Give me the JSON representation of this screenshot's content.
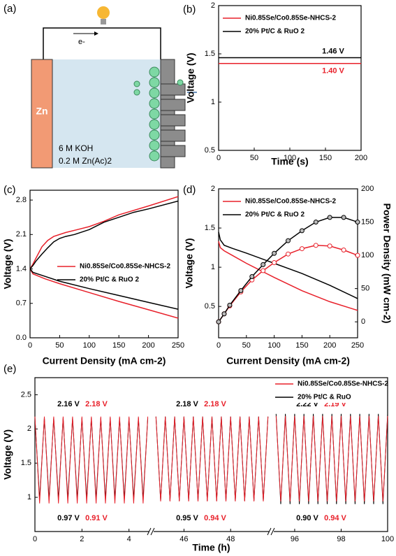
{
  "panel_a": {
    "label": "(a)",
    "electron": "e-",
    "anode": "Zn",
    "electrolyte_1": "6 M KOH",
    "electrolyte_2": "0.2 M Zn(Ac)2"
  },
  "chart_data": [
    {
      "type": "line",
      "panel_label": "(b)",
      "xlabel": "Time (s)",
      "ylabel": "Voltage (V)",
      "xlim": [
        0,
        200
      ],
      "xticks": [
        0,
        50,
        100,
        150,
        200
      ],
      "ylim": [
        0.5,
        2.0
      ],
      "yticks": [
        0.5,
        1.0,
        1.5,
        2.0
      ],
      "series": [
        {
          "name": "Ni0.85Se/Co0.85Se-NHCS-2",
          "color": "#e8202a",
          "x": [
            0,
            200
          ],
          "values": [
            1.4,
            1.4
          ]
        },
        {
          "name": "20% Pt/C & RuO 2",
          "color": "#000000",
          "x": [
            0,
            200
          ],
          "values": [
            1.46,
            1.46
          ]
        }
      ],
      "annotations": [
        "1.40 V",
        "1.46 V"
      ]
    },
    {
      "type": "line",
      "panel_label": "(c)",
      "xlabel": "Current Density (mA cm-2)",
      "ylabel": "Voltage (V)",
      "xlim": [
        0,
        250
      ],
      "xticks": [
        0,
        50,
        100,
        150,
        200,
        250
      ],
      "ylim": [
        0,
        3.0
      ],
      "yticks": [
        {
          "value": 0,
          "label": "0.0"
        },
        0.7,
        1.4,
        2.1,
        2.8
      ],
      "series": [
        {
          "name": "Ni0.85Se/Co0.85Se-NHCS-2",
          "color": "#e8202a",
          "x": [
            0,
            5,
            25,
            50,
            100,
            150,
            200,
            250,
            null,
            0,
            5,
            10,
            20,
            30,
            40,
            60,
            80,
            100,
            125,
            150,
            200,
            250
          ],
          "values": [
            1.4,
            1.3,
            1.2,
            1.1,
            0.92,
            0.74,
            0.57,
            0.4,
            null,
            1.4,
            1.5,
            1.62,
            1.85,
            1.98,
            2.06,
            2.14,
            2.2,
            2.26,
            2.37,
            2.5,
            2.68,
            2.87
          ]
        },
        {
          "name": "20% Pt/C & RuO 2",
          "color": "#000000",
          "x": [
            0,
            5,
            25,
            50,
            100,
            150,
            200,
            250,
            null,
            0,
            5,
            10,
            20,
            30,
            40,
            50,
            60,
            75,
            100,
            125,
            150,
            175,
            200,
            250
          ],
          "values": [
            1.4,
            1.33,
            1.25,
            1.15,
            1.0,
            0.86,
            0.72,
            0.58,
            null,
            1.4,
            1.47,
            1.56,
            1.7,
            1.83,
            1.95,
            2.02,
            2.06,
            2.1,
            2.2,
            2.35,
            2.45,
            2.55,
            2.62,
            2.78
          ]
        }
      ]
    },
    {
      "type": "line",
      "panel_label": "(d)",
      "xlabel": "Current Density (mA cm-2)",
      "ylabel": "Voltage (V)",
      "y2label": "Power Density (mW cm-2)",
      "xlim": [
        0,
        250
      ],
      "xticks": [
        0,
        50,
        100,
        150,
        200,
        250
      ],
      "ylim": [
        0.1,
        2.0
      ],
      "yticks": [
        0.5,
        1.0,
        1.5,
        2.0
      ],
      "y2lim": [
        -24,
        200
      ],
      "y2ticks": [
        0,
        50,
        100,
        150,
        200
      ],
      "series": [
        {
          "name": "Ni0.85Se/Co0.85Se-NHCS-2",
          "color": "#e8202a",
          "x": [
            0,
            3,
            10,
            25,
            50,
            100,
            150,
            200,
            250
          ],
          "values": [
            1.33,
            1.25,
            1.21,
            1.15,
            1.05,
            0.87,
            0.7,
            0.56,
            0.45
          ]
        },
        {
          "name": "20% Pt/C & RuO 2",
          "color": "#000000",
          "x": [
            0,
            3,
            10,
            25,
            50,
            100,
            150,
            200,
            250
          ],
          "values": [
            1.45,
            1.35,
            1.28,
            1.24,
            1.18,
            1.05,
            0.92,
            0.77,
            0.6
          ]
        },
        {
          "color": "#e8202a",
          "axis": "y2",
          "marker": "circle",
          "x": [
            0,
            10,
            20,
            40,
            60,
            80,
            100,
            125,
            150,
            175,
            200,
            225,
            250
          ],
          "values": [
            0,
            12,
            24,
            45,
            63,
            77,
            89,
            102,
            110,
            115,
            114,
            108,
            100
          ]
        },
        {
          "color": "#000000",
          "axis": "y2",
          "marker": "circle",
          "x": [
            0,
            10,
            20,
            40,
            60,
            80,
            100,
            125,
            150,
            175,
            200,
            225,
            250
          ],
          "values": [
            0,
            12,
            25,
            47,
            68,
            86,
            103,
            122,
            137,
            150,
            157,
            157,
            150
          ]
        }
      ]
    },
    {
      "type": "broken-line",
      "panel_label": "(e)",
      "xlabel": "Time (h)",
      "ylabel": "Voltage (V)",
      "ylim": [
        0.5,
        2.75
      ],
      "yticks": [
        1.0,
        1.5,
        2.0,
        2.5
      ],
      "series": [
        {
          "name": "Ni0.85Se/Co0.85Se-NHCS-2",
          "color": "#e8202a"
        },
        {
          "name": "20% Pt/C & RuO",
          "color": "#000000"
        }
      ],
      "segments": [
        {
          "xlim": [
            0,
            4.9
          ],
          "xticks": [
            0,
            2,
            4
          ],
          "x": [
            0,
            0.2,
            0.4,
            0.6,
            0.8,
            1,
            1.2,
            1.4,
            1.6,
            1.8,
            2,
            2.2,
            2.4,
            2.6,
            2.8,
            3,
            3.2,
            3.4,
            3.6,
            3.8,
            4,
            4.2,
            4.4,
            4.6,
            4.8
          ],
          "values": [
            [
              2.18,
              0.91,
              2.18,
              0.91,
              2.18,
              0.91,
              2.18,
              0.91,
              2.18,
              0.91,
              2.18,
              0.91,
              2.18,
              0.91,
              2.18,
              0.91,
              2.18,
              0.91,
              2.18,
              0.91,
              2.18,
              0.91,
              2.18,
              0.91,
              2.18
            ],
            [
              2.16,
              0.97,
              2.16,
              0.97,
              2.16,
              0.97,
              2.16,
              0.97,
              2.16,
              0.97,
              2.16,
              0.97,
              2.16,
              0.97,
              2.16,
              0.97,
              2.16,
              0.97,
              2.16,
              0.97,
              2.16,
              0.97,
              2.16,
              0.97,
              2.16
            ]
          ],
          "annotations": [
            "2.18 V",
            "2.16 V",
            "0.91 V",
            "0.97 V"
          ]
        },
        {
          "xlim": [
            44.7,
            49.7
          ],
          "xticks": [
            46,
            48
          ],
          "x": [
            44.8,
            45,
            45.2,
            45.4,
            45.6,
            45.8,
            46,
            46.2,
            46.4,
            46.6,
            46.8,
            47,
            47.2,
            47.4,
            47.6,
            47.8,
            48,
            48.2,
            48.4,
            48.6,
            48.8,
            49,
            49.2,
            49.4,
            49.6
          ],
          "values": [
            [
              2.18,
              0.94,
              2.18,
              0.94,
              2.18,
              0.94,
              2.18,
              0.94,
              2.18,
              0.94,
              2.18,
              0.94,
              2.18,
              0.94,
              2.18,
              0.94,
              2.18,
              0.94,
              2.18,
              0.94,
              2.18,
              0.94,
              2.18,
              0.94,
              2.18
            ],
            [
              2.18,
              0.95,
              2.18,
              0.95,
              2.18,
              0.95,
              2.18,
              0.95,
              2.18,
              0.95,
              2.18,
              0.95,
              2.18,
              0.95,
              2.18,
              0.95,
              2.18,
              0.95,
              2.18,
              0.95,
              2.18,
              0.95,
              2.18,
              0.95,
              2.18
            ]
          ],
          "annotations": [
            "2.18 V",
            "2.18 V",
            "0.94 V",
            "0.95 V"
          ]
        },
        {
          "xlim": [
            95.1,
            100
          ],
          "xticks": [
            96,
            98,
            100
          ],
          "x": [
            95.2,
            95.4,
            95.6,
            95.8,
            96,
            96.2,
            96.4,
            96.6,
            96.8,
            97,
            97.2,
            97.4,
            97.6,
            97.8,
            98,
            98.2,
            98.4,
            98.6,
            98.8,
            99,
            99.2,
            99.4,
            99.6,
            99.8,
            100
          ],
          "values": [
            [
              2.19,
              0.94,
              2.19,
              0.94,
              2.19,
              0.94,
              2.19,
              0.94,
              2.19,
              0.94,
              2.19,
              0.94,
              2.19,
              0.94,
              2.19,
              0.94,
              2.19,
              0.94,
              2.19,
              0.94,
              2.19,
              0.94,
              2.19,
              0.94,
              2.19
            ],
            [
              2.22,
              0.9,
              2.22,
              0.9,
              2.22,
              0.9,
              2.22,
              0.9,
              2.22,
              0.9,
              2.22,
              0.9,
              2.22,
              0.9,
              2.22,
              0.9,
              2.22,
              0.9,
              2.22,
              0.9,
              2.22,
              0.9,
              2.22,
              0.9,
              2.22
            ]
          ],
          "annotations": [
            "2.19 V",
            "2.22 V",
            "0.94 V",
            "0.90 V"
          ]
        }
      ]
    }
  ]
}
